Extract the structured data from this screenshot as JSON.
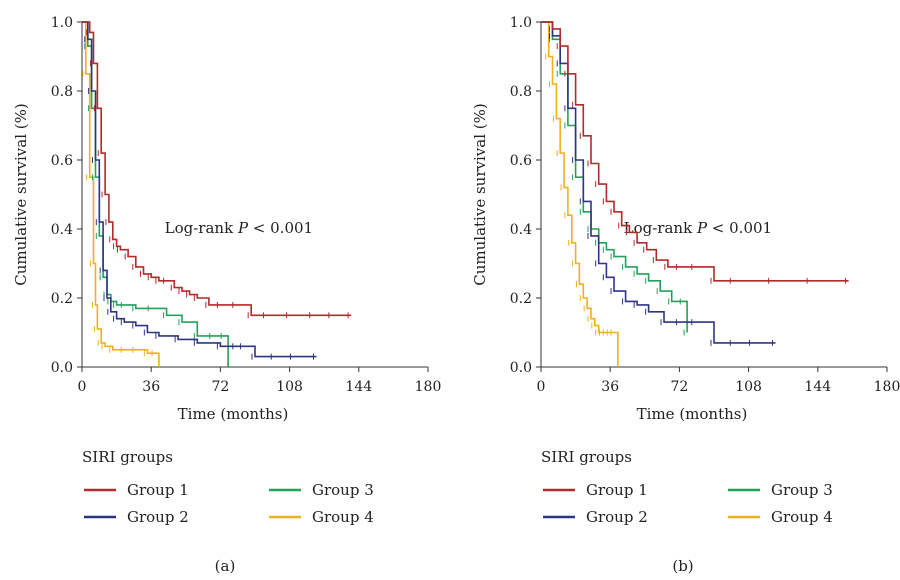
{
  "legend_title": "SIRI groups",
  "colors": {
    "Group 1": "#b22a2a",
    "Group 2": "#2e3585",
    "Group 3": "#23a05a",
    "Group 4": "#f0b020",
    "axis": "#333333"
  },
  "chart_data": [
    {
      "type": "line",
      "panel_label": "(a)",
      "annotation": "Log-rank P < 0.001",
      "annotation_prefix": "Log-rank ",
      "annotation_italic": "P",
      "annotation_suffix": " < 0.001",
      "xlabel": "Time (months)",
      "ylabel": "Cumulative survival (%)",
      "xlim": [
        0,
        180
      ],
      "ylim": [
        0,
        1.0
      ],
      "xticks": [
        "0",
        "36",
        "72",
        "108",
        "144",
        "180"
      ],
      "yticks": [
        "0.0",
        "0.2",
        "0.4",
        "0.6",
        "0.8",
        "1.0"
      ],
      "grid": false,
      "legend_position": "bottom",
      "series": [
        {
          "name": "Group 1",
          "x": [
            0,
            4,
            6,
            8,
            10,
            12,
            14,
            16,
            18,
            20,
            24,
            28,
            32,
            36,
            40,
            44,
            48,
            52,
            56,
            60,
            66,
            72,
            80,
            88,
            96,
            108,
            120,
            130,
            140
          ],
          "y": [
            1.0,
            0.97,
            0.88,
            0.75,
            0.62,
            0.5,
            0.42,
            0.37,
            0.35,
            0.34,
            0.32,
            0.29,
            0.27,
            0.26,
            0.25,
            0.25,
            0.23,
            0.22,
            0.21,
            0.2,
            0.18,
            0.18,
            0.18,
            0.15,
            0.15,
            0.15,
            0.15,
            0.15,
            0.15
          ]
        },
        {
          "name": "Group 2",
          "x": [
            0,
            3,
            5,
            7,
            9,
            11,
            13,
            15,
            18,
            22,
            28,
            34,
            40,
            50,
            60,
            72,
            80,
            84,
            90,
            100,
            110,
            122
          ],
          "y": [
            1.0,
            0.95,
            0.8,
            0.6,
            0.42,
            0.28,
            0.2,
            0.16,
            0.14,
            0.13,
            0.12,
            0.1,
            0.09,
            0.08,
            0.07,
            0.06,
            0.06,
            0.06,
            0.03,
            0.03,
            0.03,
            0.03
          ]
        },
        {
          "name": "Group 3",
          "x": [
            0,
            3,
            5,
            7,
            9,
            11,
            13,
            15,
            18,
            22,
            28,
            36,
            44,
            52,
            60,
            68,
            74,
            76
          ],
          "y": [
            1.0,
            0.93,
            0.75,
            0.55,
            0.38,
            0.26,
            0.21,
            0.19,
            0.18,
            0.18,
            0.17,
            0.17,
            0.15,
            0.13,
            0.09,
            0.09,
            0.09,
            0.0
          ]
        },
        {
          "name": "Group 4",
          "x": [
            0,
            2,
            4,
            6,
            7,
            8,
            10,
            12,
            16,
            22,
            28,
            34,
            38,
            40
          ],
          "y": [
            1.0,
            0.85,
            0.55,
            0.3,
            0.18,
            0.11,
            0.07,
            0.06,
            0.05,
            0.05,
            0.05,
            0.04,
            0.04,
            0.0
          ]
        }
      ]
    },
    {
      "type": "line",
      "panel_label": "(b)",
      "annotation": "Log-rank P < 0.001",
      "annotation_prefix": "Log-rank ",
      "annotation_italic": "P",
      "annotation_suffix": " < 0.001",
      "xlabel": "Time (months)",
      "ylabel": "Cumulative survival (%)",
      "xlim": [
        0,
        180
      ],
      "ylim": [
        0,
        1.0
      ],
      "xticks": [
        "0",
        "36",
        "72",
        "108",
        "144",
        "180"
      ],
      "yticks": [
        "0.0",
        "0.2",
        "0.4",
        "0.6",
        "0.8",
        "1.0"
      ],
      "grid": false,
      "legend_position": "bottom",
      "series": [
        {
          "name": "Group 1",
          "x": [
            0,
            6,
            10,
            14,
            18,
            22,
            26,
            30,
            34,
            38,
            42,
            46,
            50,
            55,
            60,
            66,
            72,
            80,
            90,
            100,
            120,
            140,
            160
          ],
          "y": [
            1.0,
            0.98,
            0.93,
            0.85,
            0.76,
            0.67,
            0.59,
            0.53,
            0.48,
            0.45,
            0.41,
            0.39,
            0.36,
            0.34,
            0.31,
            0.29,
            0.29,
            0.29,
            0.25,
            0.25,
            0.25,
            0.25,
            0.25
          ]
        },
        {
          "name": "Group 2",
          "x": [
            0,
            6,
            10,
            14,
            18,
            22,
            26,
            30,
            34,
            38,
            44,
            50,
            56,
            64,
            72,
            80,
            90,
            100,
            110,
            122
          ],
          "y": [
            1.0,
            0.96,
            0.88,
            0.75,
            0.6,
            0.48,
            0.38,
            0.3,
            0.26,
            0.22,
            0.19,
            0.18,
            0.16,
            0.13,
            0.13,
            0.13,
            0.07,
            0.07,
            0.07,
            0.07
          ]
        },
        {
          "name": "Group 3",
          "x": [
            0,
            6,
            10,
            14,
            18,
            22,
            26,
            30,
            34,
            38,
            44,
            50,
            56,
            62,
            68,
            74,
            76
          ],
          "y": [
            1.0,
            0.95,
            0.85,
            0.7,
            0.55,
            0.45,
            0.4,
            0.36,
            0.34,
            0.32,
            0.29,
            0.27,
            0.25,
            0.22,
            0.19,
            0.19,
            0.1
          ]
        },
        {
          "name": "Group 4",
          "x": [
            0,
            4,
            6,
            8,
            10,
            12,
            14,
            16,
            18,
            20,
            22,
            24,
            26,
            28,
            30,
            32,
            34,
            36,
            38,
            40
          ],
          "y": [
            1.0,
            0.9,
            0.82,
            0.72,
            0.62,
            0.52,
            0.44,
            0.36,
            0.3,
            0.24,
            0.2,
            0.17,
            0.14,
            0.12,
            0.1,
            0.1,
            0.1,
            0.1,
            0.1,
            0.0
          ]
        }
      ]
    }
  ]
}
